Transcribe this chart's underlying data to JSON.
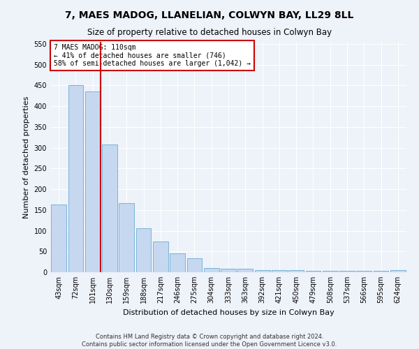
{
  "title": "7, MAES MADOG, LLANELIAN, COLWYN BAY, LL29 8LL",
  "subtitle": "Size of property relative to detached houses in Colwyn Bay",
  "xlabel": "Distribution of detached houses by size in Colwyn Bay",
  "ylabel": "Number of detached properties",
  "footer1": "Contains HM Land Registry data © Crown copyright and database right 2024.",
  "footer2": "Contains public sector information licensed under the Open Government Licence v3.0.",
  "categories": [
    "43sqm",
    "72sqm",
    "101sqm",
    "130sqm",
    "159sqm",
    "188sqm",
    "217sqm",
    "246sqm",
    "275sqm",
    "304sqm",
    "333sqm",
    "363sqm",
    "392sqm",
    "421sqm",
    "450sqm",
    "479sqm",
    "508sqm",
    "537sqm",
    "566sqm",
    "595sqm",
    "624sqm"
  ],
  "values": [
    163,
    450,
    435,
    307,
    167,
    106,
    74,
    45,
    33,
    10,
    8,
    8,
    5,
    5,
    5,
    4,
    4,
    4,
    4,
    4,
    5
  ],
  "bar_color": "#c5d8f0",
  "bar_edge_color": "#7ab3d9",
  "vline_index": 2,
  "vline_color": "#cc0000",
  "annotation_line1": "7 MAES MADOG: 110sqm",
  "annotation_line2": "← 41% of detached houses are smaller (746)",
  "annotation_line3": "58% of semi-detached houses are larger (1,042) →",
  "annotation_box_color": "#cc0000",
  "ylim": [
    0,
    555
  ],
  "yticks": [
    0,
    50,
    100,
    150,
    200,
    250,
    300,
    350,
    400,
    450,
    500,
    550
  ],
  "bg_color": "#eef2f9",
  "plot_bg_color": "#eef2f9",
  "title_fontsize": 10,
  "subtitle_fontsize": 8.5,
  "xlabel_fontsize": 8,
  "ylabel_fontsize": 8,
  "tick_fontsize": 7,
  "annotation_fontsize": 7,
  "footer_fontsize": 6
}
